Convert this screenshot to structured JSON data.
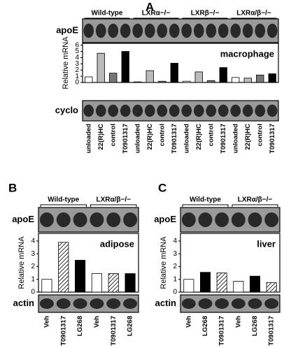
{
  "chart_data": [
    {
      "type": "bar",
      "panel": "A",
      "groups": [
        "Wild-type",
        "LXRα−/−",
        "LXRβ−/−",
        "LXRα/β−/−"
      ],
      "blot_top_label": "apoE",
      "blot_bottom_label": "cyclo",
      "ylabel": "Relative mRNA",
      "annotation": "macrophage",
      "categories": [
        "unloaded",
        "22(R)HC",
        "control",
        "T0901317",
        "unloaded",
        "22(R)HC",
        "control",
        "T0901317",
        "unloaded",
        "22(R)HC",
        "control",
        "T0901317",
        "unloaded",
        "22(R)HC",
        "control",
        "T0901317"
      ],
      "values": [
        0.9,
        4.7,
        1.5,
        5.0,
        0.1,
        1.9,
        0.2,
        3.1,
        0.2,
        1.7,
        0.3,
        2.4,
        0.8,
        0.7,
        1.2,
        1.4
      ],
      "fills": [
        "#ffffff",
        "#bbbbbb",
        "#777777",
        "#000000",
        "#ffffff",
        "#bbbbbb",
        "#777777",
        "#000000",
        "#ffffff",
        "#bbbbbb",
        "#777777",
        "#000000",
        "#ffffff",
        "#bbbbbb",
        "#777777",
        "#000000"
      ],
      "ylim": [
        0,
        6.3
      ],
      "yticks": [
        0,
        1,
        2,
        3,
        4,
        5,
        6
      ]
    },
    {
      "type": "bar",
      "panel": "B",
      "groups": [
        "Wild-type",
        "LXRα/β−/−"
      ],
      "blot_top_label": "apoE",
      "blot_bottom_label": "actin",
      "ylabel": "Relative mRNA",
      "annotation": "adipose",
      "categories": [
        "Veh",
        "T0901317",
        "LG268",
        "Veh",
        "T0901317",
        "LG268"
      ],
      "values": [
        1.0,
        3.9,
        2.5,
        1.45,
        1.45,
        1.45
      ],
      "fills": [
        "#ffffff",
        "hatched",
        "#000000",
        "#ffffff",
        "hatched",
        "#000000"
      ],
      "ylim": [
        0,
        4.6
      ],
      "yticks": [
        0,
        1,
        2,
        3,
        4
      ]
    },
    {
      "type": "bar",
      "panel": "C",
      "groups": [
        "Wild-type",
        "LXRα/β−/−"
      ],
      "blot_top_label": "apoE",
      "blot_bottom_label": "actin",
      "ylabel": "Relative mRNA",
      "annotation": "liver",
      "categories": [
        "Veh",
        "LG268",
        "T0901317",
        "Veh",
        "LG268",
        "T0901317"
      ],
      "values": [
        1.0,
        1.55,
        1.5,
        0.85,
        1.25,
        0.75
      ],
      "fills": [
        "#ffffff",
        "#000000",
        "hatched",
        "#ffffff",
        "#000000",
        "hatched"
      ],
      "ylim": [
        0,
        4.6
      ],
      "yticks": [
        0,
        1,
        2,
        3,
        4
      ]
    }
  ]
}
